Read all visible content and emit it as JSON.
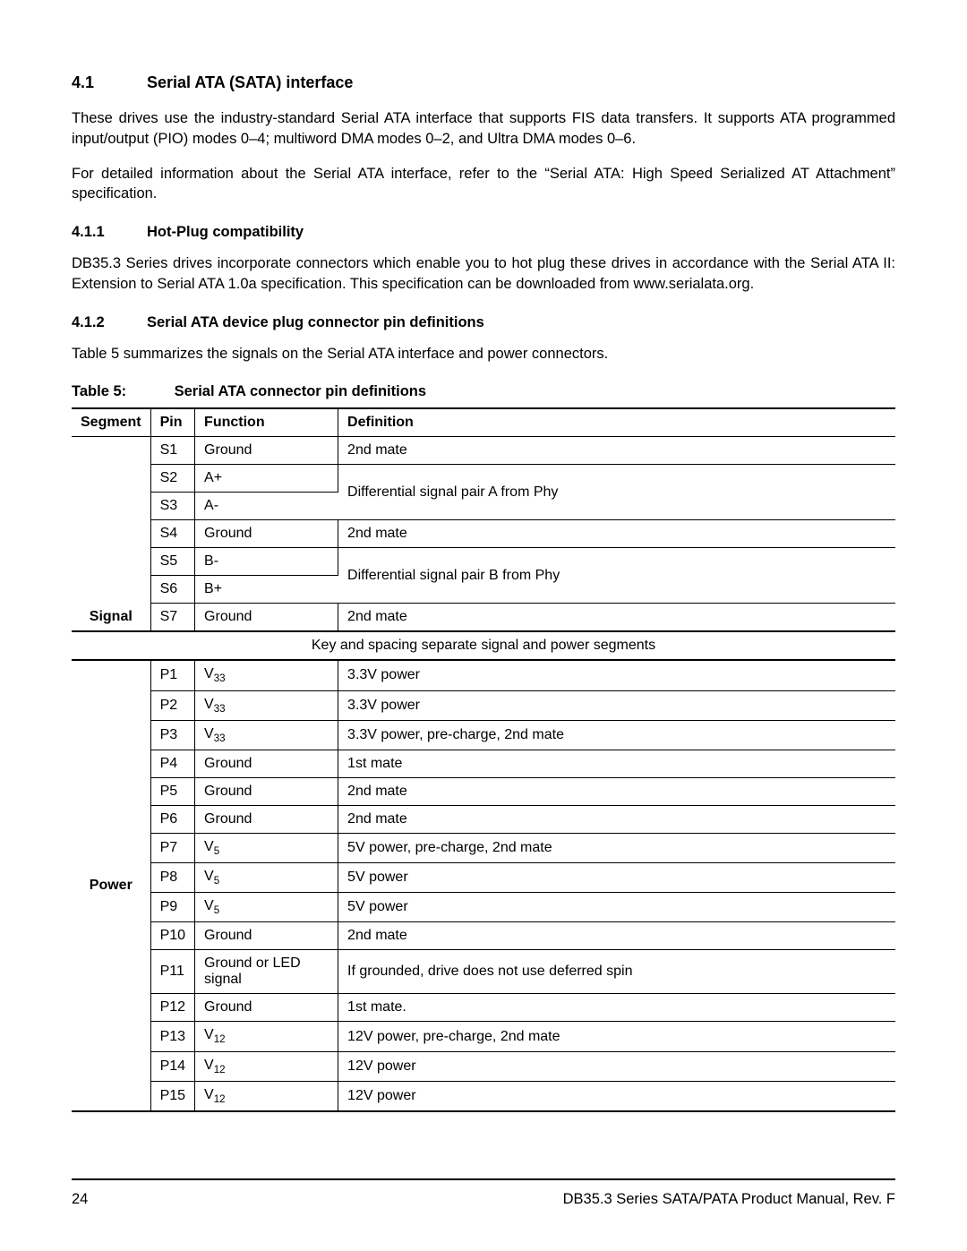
{
  "section": {
    "num": "4.1",
    "title": "Serial ATA (SATA) interface"
  },
  "para1": "These drives use the industry-standard Serial ATA interface that supports FIS data transfers. It supports ATA programmed input/output (PIO) modes 0–4; multiword DMA modes 0–2, and Ultra DMA modes 0–6.",
  "para2": "For detailed information about the Serial ATA interface, refer to the “Serial ATA: High Speed Serialized AT Attachment” specification.",
  "sub1": {
    "num": "4.1.1",
    "title": "Hot-Plug compatibility"
  },
  "para3": "DB35.3 Series drives incorporate connectors which enable you to hot plug these drives in accordance with the Serial ATA II: Extension to Serial ATA 1.0a specification. This specification can be downloaded from www.serialata.org.",
  "sub2": {
    "num": "4.1.2",
    "title": "Serial ATA device plug connector pin definitions"
  },
  "para4": "Table 5 summarizes the signals on the Serial ATA interface and power connectors.",
  "tableCaption": {
    "label": "Table 5:",
    "title": "Serial ATA connector pin definitions"
  },
  "headers": {
    "c1": "Segment",
    "c2": "Pin",
    "c3": "Function",
    "c4": "Definition"
  },
  "segSignal": "Signal",
  "segPower": "Power",
  "signalRows": [
    {
      "pin": "S1",
      "func": "Ground",
      "def": "2nd mate"
    },
    {
      "pin": "S2",
      "func": "A+",
      "def": "Differential signal pair A from Phy"
    },
    {
      "pin": "S3",
      "func": "A-",
      "def": ""
    },
    {
      "pin": "S4",
      "func": "Ground",
      "def": "2nd mate"
    },
    {
      "pin": "S5",
      "func": "B-",
      "def": "Differential signal pair B from Phy"
    },
    {
      "pin": "S6",
      "func": "B+",
      "def": ""
    },
    {
      "pin": "S7",
      "func": "Ground",
      "def": "2nd mate"
    }
  ],
  "separator": "Key and spacing separate signal and power segments",
  "powerRows": [
    {
      "pin": "P1",
      "func": "V33",
      "def": "3.3V power"
    },
    {
      "pin": "P2",
      "func": "V33",
      "def": "3.3V power"
    },
    {
      "pin": "P3",
      "func": "V33",
      "def": "3.3V power, pre-charge, 2nd mate"
    },
    {
      "pin": "P4",
      "func": "Ground",
      "def": "1st mate"
    },
    {
      "pin": "P5",
      "func": "Ground",
      "def": "2nd mate"
    },
    {
      "pin": "P6",
      "func": "Ground",
      "def": "2nd mate"
    },
    {
      "pin": "P7",
      "func": "V5",
      "def": "5V power, pre-charge, 2nd mate"
    },
    {
      "pin": "P8",
      "func": "V5",
      "def": "5V power"
    },
    {
      "pin": "P9",
      "func": "V5",
      "def": "5V power"
    },
    {
      "pin": "P10",
      "func": "Ground",
      "def": "2nd mate"
    },
    {
      "pin": "P11",
      "func": "Ground or LED signal",
      "def": "If grounded, drive does not use deferred spin"
    },
    {
      "pin": "P12",
      "func": "Ground",
      "def": "1st mate."
    },
    {
      "pin": "P13",
      "func": "V12",
      "def": "12V power, pre-charge, 2nd mate"
    },
    {
      "pin": "P14",
      "func": "V12",
      "def": "12V power"
    },
    {
      "pin": "P15",
      "func": "V12",
      "def": "12V power"
    }
  ],
  "footer": {
    "page": "24",
    "title": "DB35.3 Series SATA/PATA Product Manual, Rev. F"
  },
  "styling": {
    "col_widths": [
      "88px",
      "48px",
      "160px",
      "auto"
    ],
    "font_family": "Arial",
    "text_color": "#000000",
    "bg_color": "#ffffff",
    "rule_color": "#000000"
  }
}
